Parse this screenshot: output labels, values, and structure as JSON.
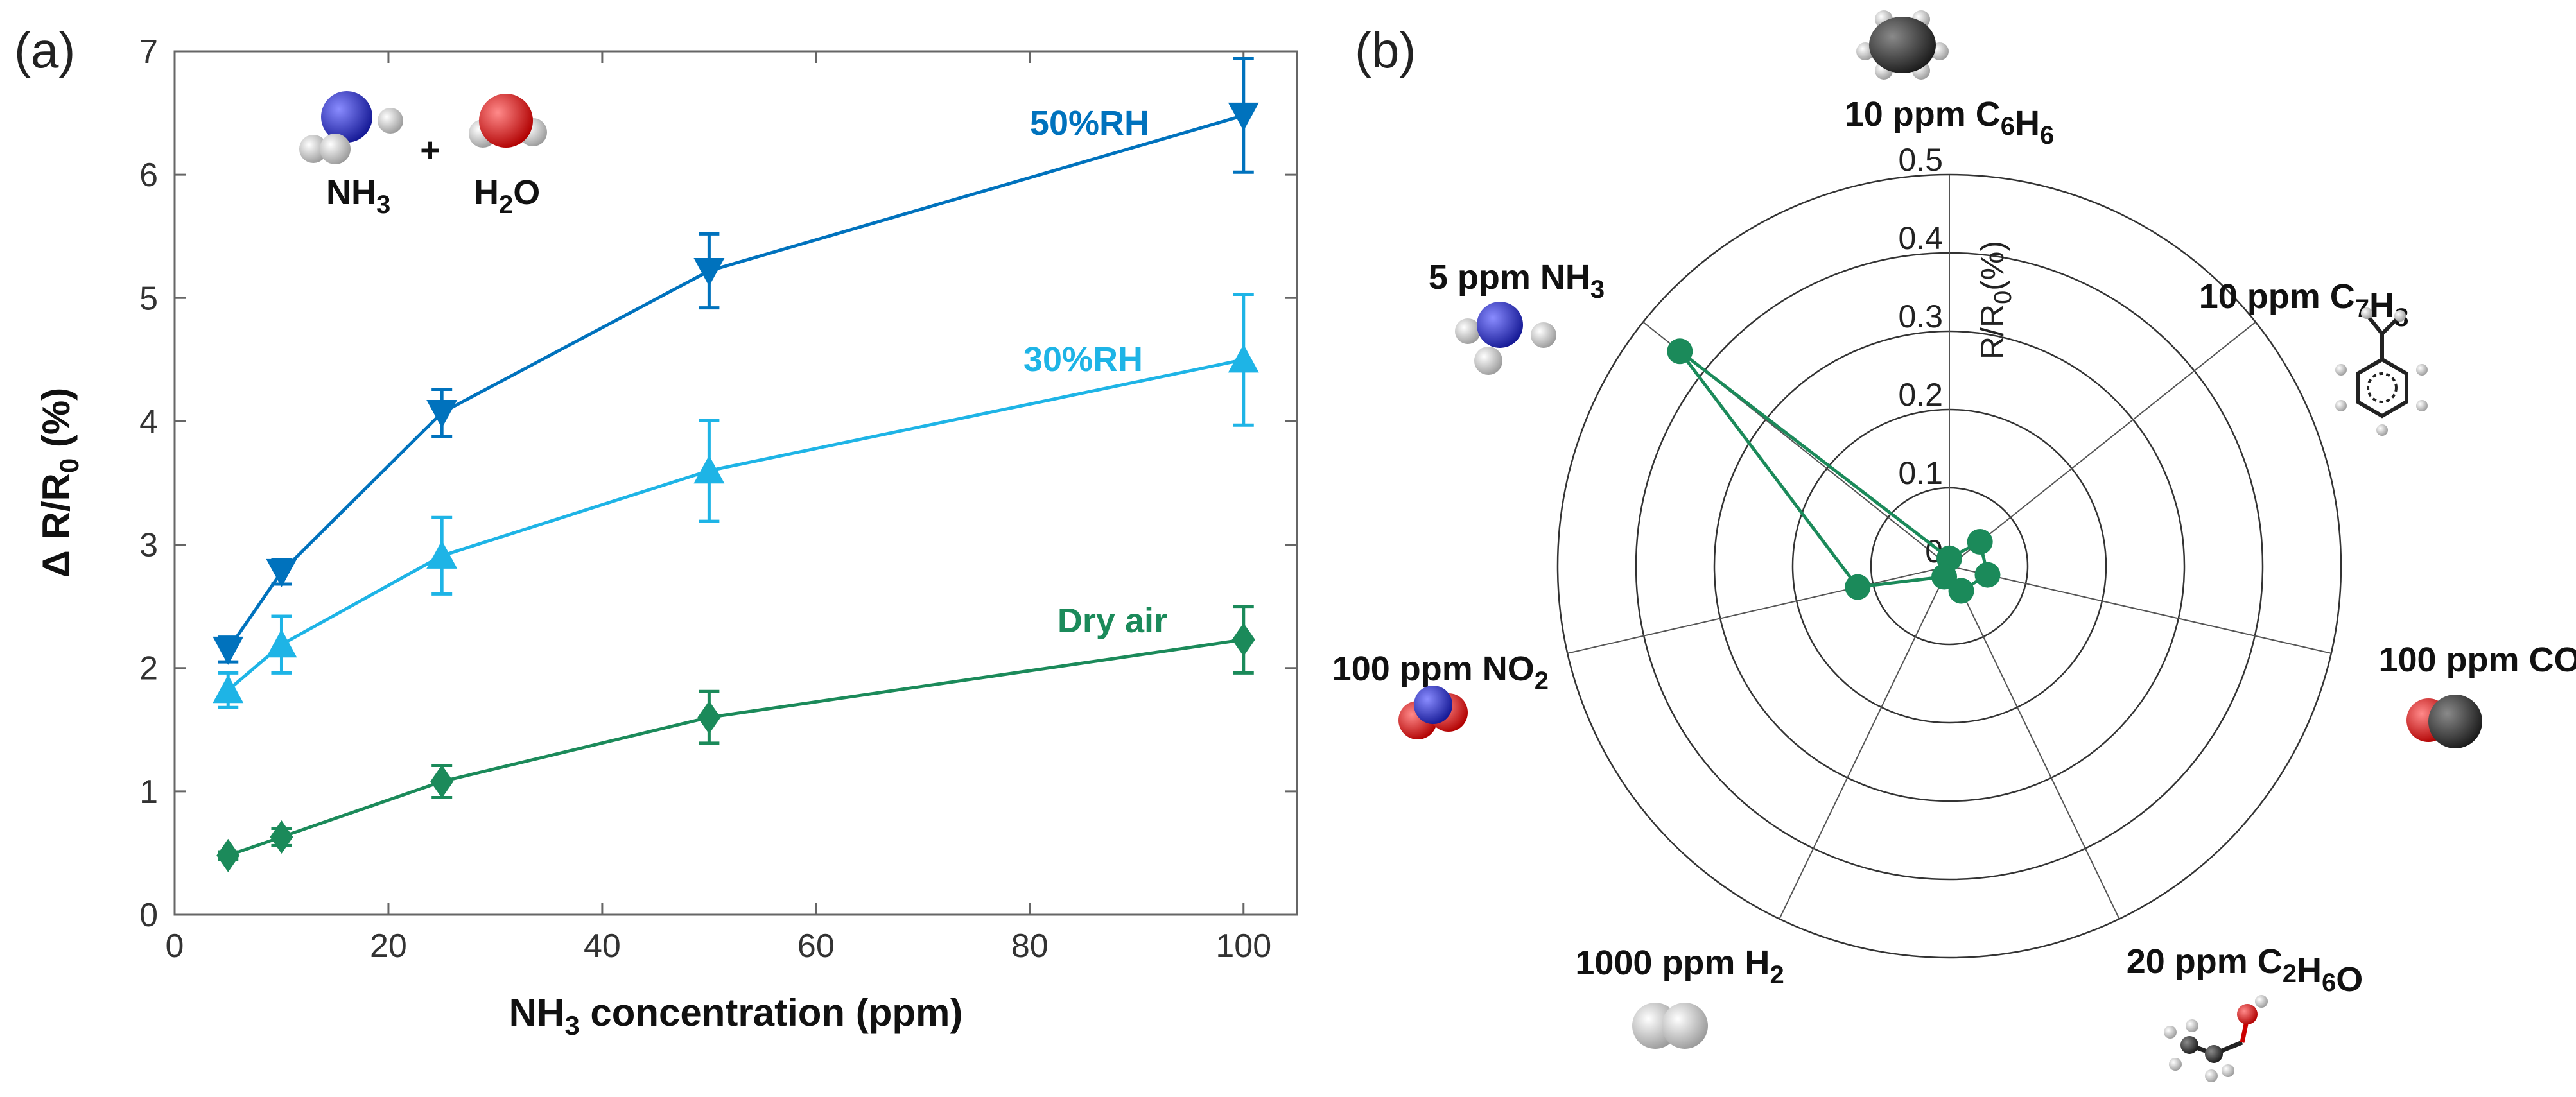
{
  "panel_a": {
    "label": "(a)",
    "mol_nh3": "NH",
    "mol_nh3_sub": "3",
    "plus": "+",
    "mol_h2o_a": "H",
    "mol_h2o_sub": "2",
    "mol_h2o_b": "O",
    "ylabel_pre": "Δ R/R",
    "ylabel_sub": "0",
    "ylabel_post": " (%)",
    "xlabel_pre": "NH",
    "xlabel_sub": "3",
    "xlabel_post": " concentration (ppm)"
  },
  "panel_b": {
    "label": "(b)",
    "rlabel_pre": "R/R",
    "rlabel_sub": "0",
    "rlabel_post": "(%)"
  },
  "colors": {
    "rh50": "#0072BD",
    "rh30": "#1EB4E6",
    "dry": "#1B8A5A",
    "radar": "#1B8A5A"
  },
  "chart_data": [
    {
      "type": "line",
      "title": "",
      "xlabel": "NH3 concentration (ppm)",
      "ylabel": "ΔR/R0 (%)",
      "xlim": [
        0,
        105
      ],
      "ylim": [
        0,
        7
      ],
      "xticks": [
        0,
        20,
        40,
        60,
        80,
        100
      ],
      "yticks": [
        0,
        1,
        2,
        3,
        4,
        5,
        6,
        7
      ],
      "x": [
        5,
        10,
        25,
        50,
        100
      ],
      "series": [
        {
          "name": "50%RH",
          "marker": "triangle-down",
          "values": [
            2.15,
            2.78,
            4.07,
            5.22,
            6.48
          ],
          "errors": [
            0.1,
            0.1,
            0.19,
            0.3,
            0.46
          ]
        },
        {
          "name": "30%RH",
          "marker": "triangle-up",
          "values": [
            1.82,
            2.19,
            2.91,
            3.6,
            4.5
          ],
          "errors": [
            0.14,
            0.23,
            0.31,
            0.41,
            0.53
          ]
        },
        {
          "name": "Dry air",
          "marker": "diamond",
          "values": [
            0.48,
            0.63,
            1.08,
            1.6,
            2.23
          ],
          "errors": [
            0.03,
            0.07,
            0.13,
            0.21,
            0.27
          ]
        }
      ]
    },
    {
      "type": "radar",
      "title": "",
      "rlabel": "R/R0(%)",
      "rlim": [
        0,
        0.5
      ],
      "rticks": [
        0,
        0.1,
        0.2,
        0.3,
        0.4,
        0.5
      ],
      "categories": [
        {
          "pre": "10 ppm C",
          "s1": "6",
          "mid": "H",
          "s2": "6",
          "post": "",
          "value": 0.01
        },
        {
          "pre": "10 ppm C",
          "s1": "7",
          "mid": "H",
          "s2": "8",
          "post": "",
          "value": 0.05
        },
        {
          "pre": "100 ppm CO",
          "s1": "",
          "mid": "",
          "s2": "",
          "post": "",
          "value": 0.05
        },
        {
          "pre": "20 ppm C",
          "s1": "2",
          "mid": "H",
          "s2": "6",
          "post": "O",
          "value": 0.035
        },
        {
          "pre": "1000 ppm H",
          "s1": "2",
          "mid": "",
          "s2": "",
          "post": "",
          "value": 0.015
        },
        {
          "pre": "100 ppm NO",
          "s1": "2",
          "mid": "",
          "s2": "",
          "post": "",
          "value": 0.12
        },
        {
          "pre": "5 ppm NH",
          "s1": "3",
          "mid": "",
          "s2": "",
          "post": "",
          "value": 0.44
        }
      ]
    }
  ]
}
